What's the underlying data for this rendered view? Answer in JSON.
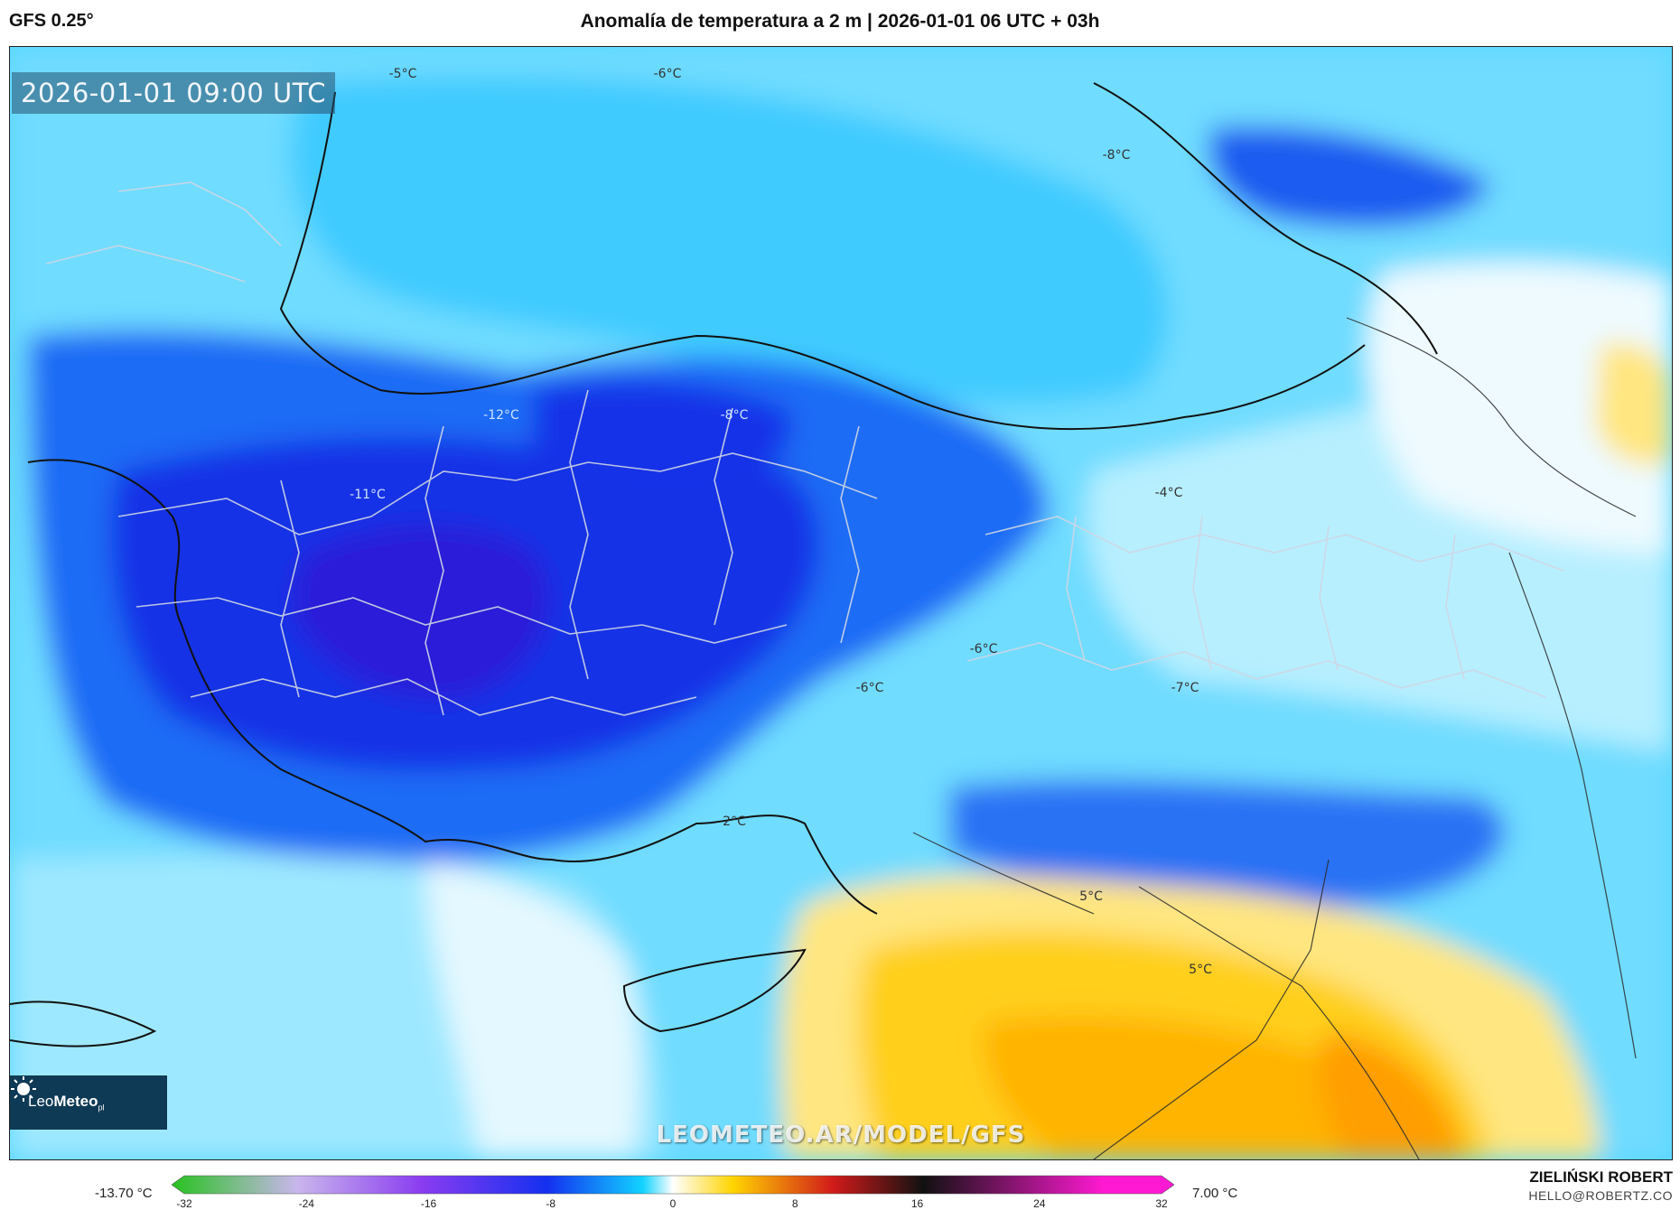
{
  "header": {
    "model": "GFS 0.25°",
    "title": "Anomalía de temperatura a 2 m | 2026-01-01 06 UTC + 03h"
  },
  "map": {
    "valid_time": "2026-01-01 09:00 UTC",
    "watermark": "LEOMETEO.AR/MODEL/GFS",
    "logo": {
      "name": "Leo",
      "bold": "Meteo",
      "suffix": "pl"
    },
    "temp_labels": [
      {
        "text": "-5°C"
      },
      {
        "text": "-6°C"
      },
      {
        "text": "-8°C"
      },
      {
        "text": "-12°C"
      },
      {
        "text": "-8°C"
      },
      {
        "text": "-11°C"
      },
      {
        "text": "-4°C"
      },
      {
        "text": "-6°C"
      },
      {
        "text": "-6°C"
      },
      {
        "text": "-7°C"
      },
      {
        "text": "2°C"
      },
      {
        "text": "5°C"
      },
      {
        "text": "5°C"
      }
    ]
  },
  "legend": {
    "min": "-13.70 °C",
    "max": "7.00 °C",
    "ticks": [
      "-32",
      "-24",
      "-16",
      "-8",
      "0",
      "8",
      "16",
      "24",
      "32"
    ],
    "colors": {
      "green": "#27c21f",
      "lavender": "#c9b6ec",
      "purple": "#8a3cf0",
      "blue": "#1430f0",
      "cyan": "#12d3ff",
      "white": "#ffffff",
      "yellow": "#ffd400",
      "red": "#d11a1a",
      "black": "#111111",
      "magenta": "#ff19d2"
    }
  },
  "footer": {
    "author": "ZIELIŃSKI ROBERT",
    "email": "HELLO@ROBERTZ.CO"
  }
}
